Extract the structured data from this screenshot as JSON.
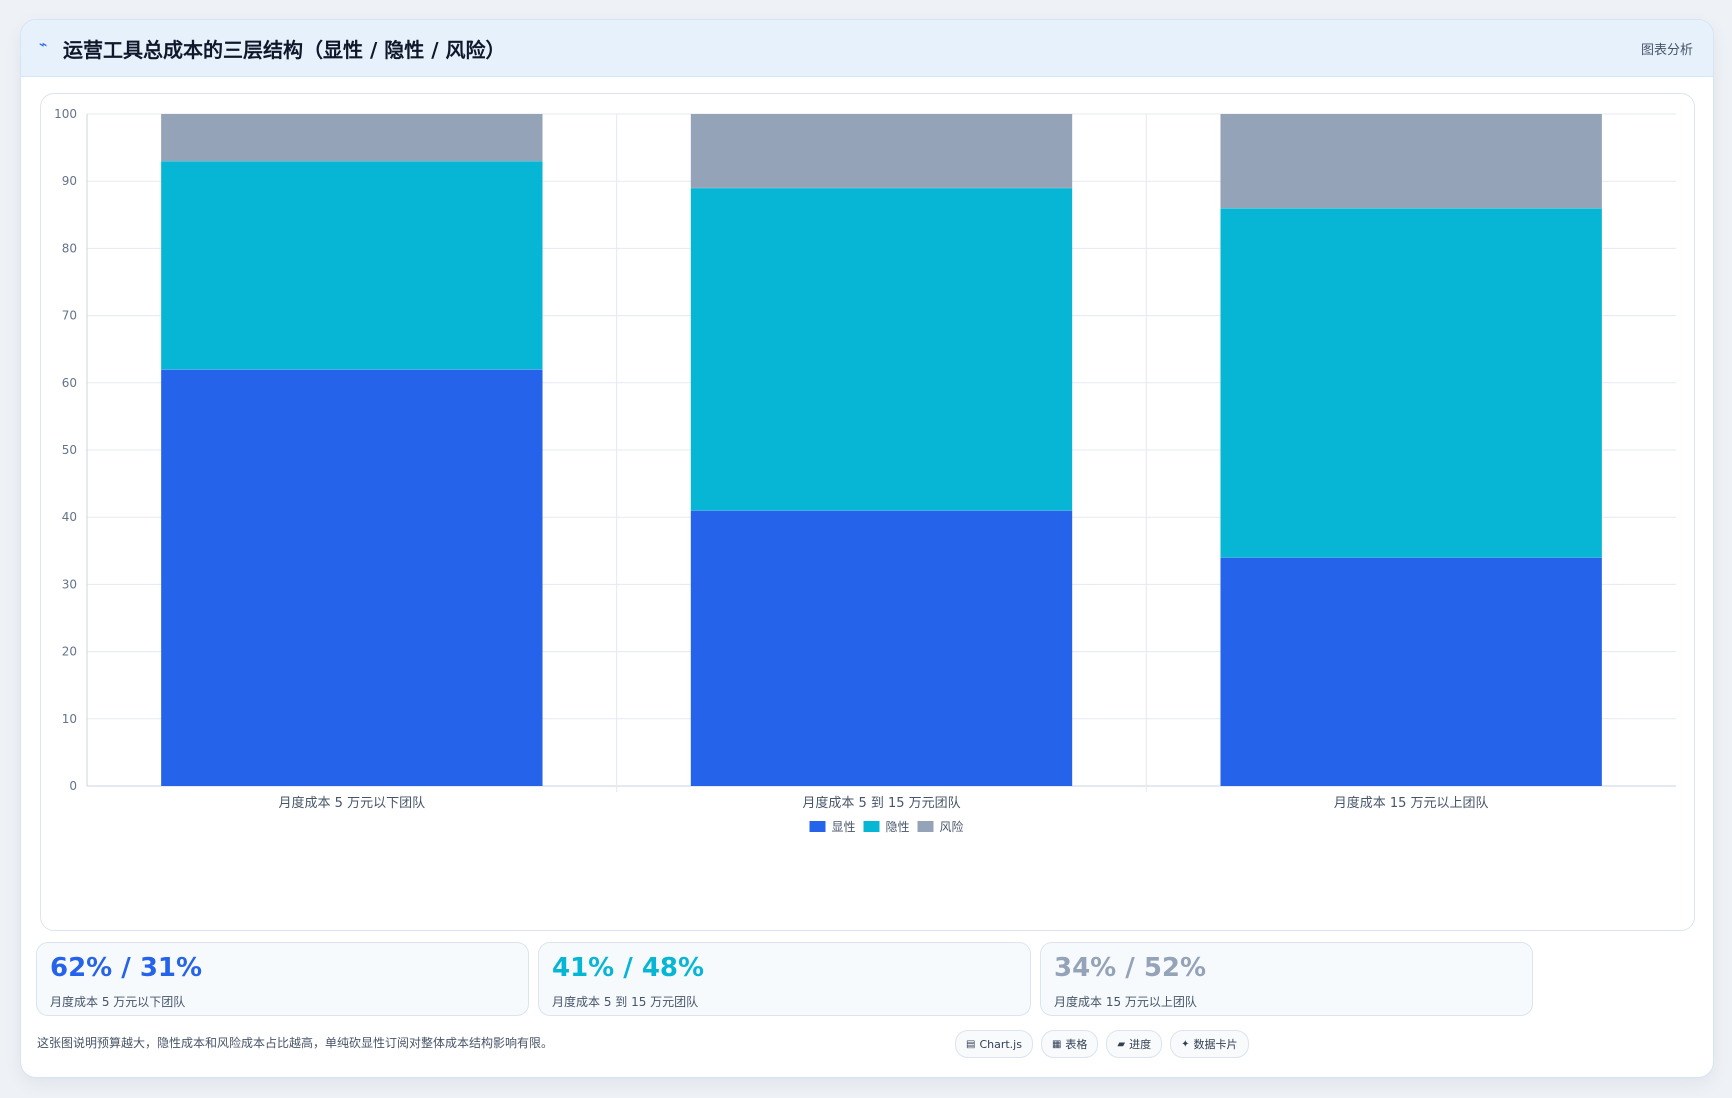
{
  "header": {
    "title": "运营工具总成本的三层结构（显性 / 隐性 / 风险）",
    "action": "图表分析",
    "icon": "chart-line-icon"
  },
  "chart_data": {
    "type": "bar",
    "stacked": true,
    "categories": [
      "月度成本 5 万元以下团队",
      "月度成本 5 到 15 万元团队",
      "月度成本 15 万元以上团队"
    ],
    "series": [
      {
        "name": "显性",
        "color": "#2563eb",
        "values": [
          62,
          41,
          34
        ]
      },
      {
        "name": "隐性",
        "color": "#06b6d4",
        "values": [
          31,
          48,
          52
        ]
      },
      {
        "name": "风险",
        "color": "#94a3b8",
        "values": [
          7,
          11,
          14
        ]
      }
    ],
    "ylim": [
      0,
      100
    ],
    "yticks": [
      0,
      10,
      20,
      30,
      40,
      50,
      60,
      70,
      80,
      90,
      100
    ],
    "grid": true,
    "legend": "bottom"
  },
  "stats": [
    {
      "value": "62% / 31%",
      "label": "月度成本 5 万元以下团队",
      "color": "#2563eb"
    },
    {
      "value": "41% / 48%",
      "label": "月度成本 5 到 15 万元团队",
      "color": "#06b6d4"
    },
    {
      "value": "34% / 52%",
      "label": "月度成本 15 万元以上团队",
      "color": "#94a3b8"
    }
  ],
  "note": "这张图说明预算越大，隐性成本和风险成本占比越高，单纯砍显性订阅对整体成本结构影响有限。",
  "tags": [
    {
      "icon": "chart-icon",
      "glyph": "▤",
      "label": "Chart.js"
    },
    {
      "icon": "table-icon",
      "glyph": "▦",
      "label": "表格"
    },
    {
      "icon": "progress-icon",
      "glyph": "▰",
      "label": "进度"
    },
    {
      "icon": "sparkle-icon",
      "glyph": "✦",
      "label": "数据卡片"
    }
  ]
}
